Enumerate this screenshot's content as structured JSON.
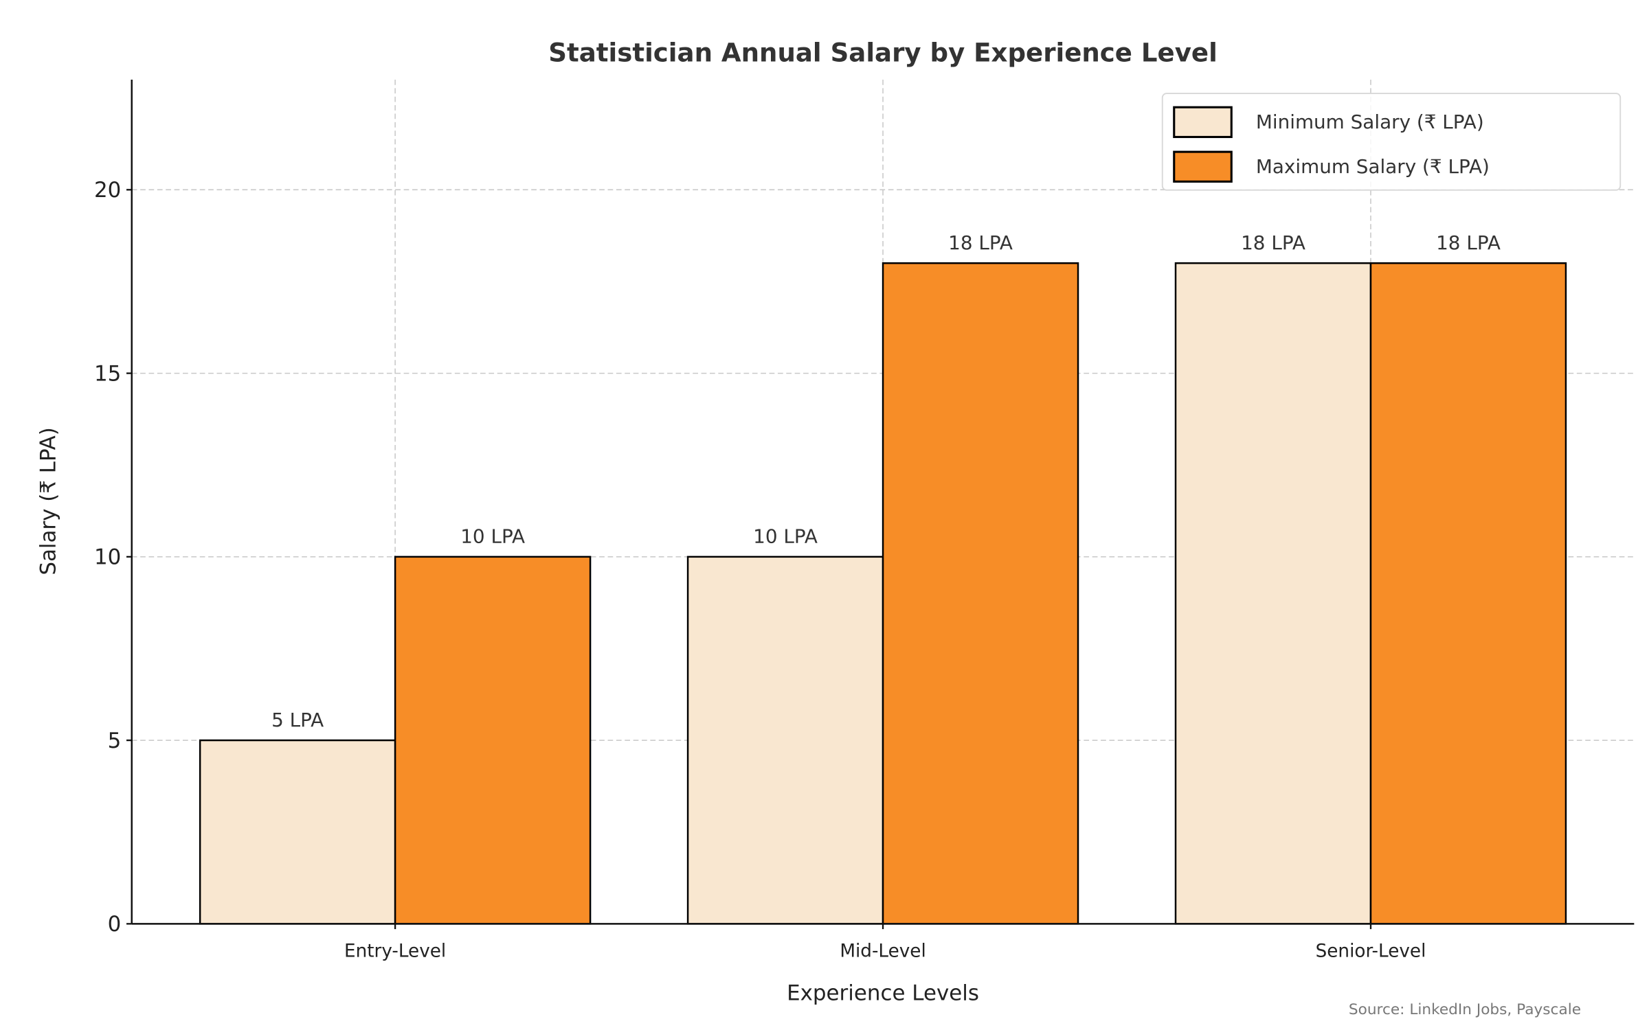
{
  "chart_data": {
    "type": "bar",
    "title": "Statistician Annual Salary by Experience Level",
    "xlabel": "Experience Levels",
    "ylabel": "Salary (₹ LPA)",
    "categories": [
      "Entry-Level",
      "Mid-Level",
      "Senior-Level"
    ],
    "series": [
      {
        "name": "Minimum Salary (₹ LPA)",
        "values": [
          5,
          10,
          18
        ],
        "labels": [
          "5 LPA",
          "10 LPA",
          "18 LPA"
        ],
        "color": "#F9E7D0"
      },
      {
        "name": "Maximum Salary (₹ LPA)",
        "values": [
          10,
          18,
          18
        ],
        "labels": [
          "10 LPA",
          "18 LPA",
          "18 LPA"
        ],
        "color": "#F78D27"
      }
    ],
    "ylim": [
      0,
      23
    ],
    "yticks": [
      "0",
      "5",
      "10",
      "15",
      "20"
    ],
    "grid": true,
    "legend": "top-right",
    "source": "Source: LinkedIn Jobs, Payscale"
  }
}
